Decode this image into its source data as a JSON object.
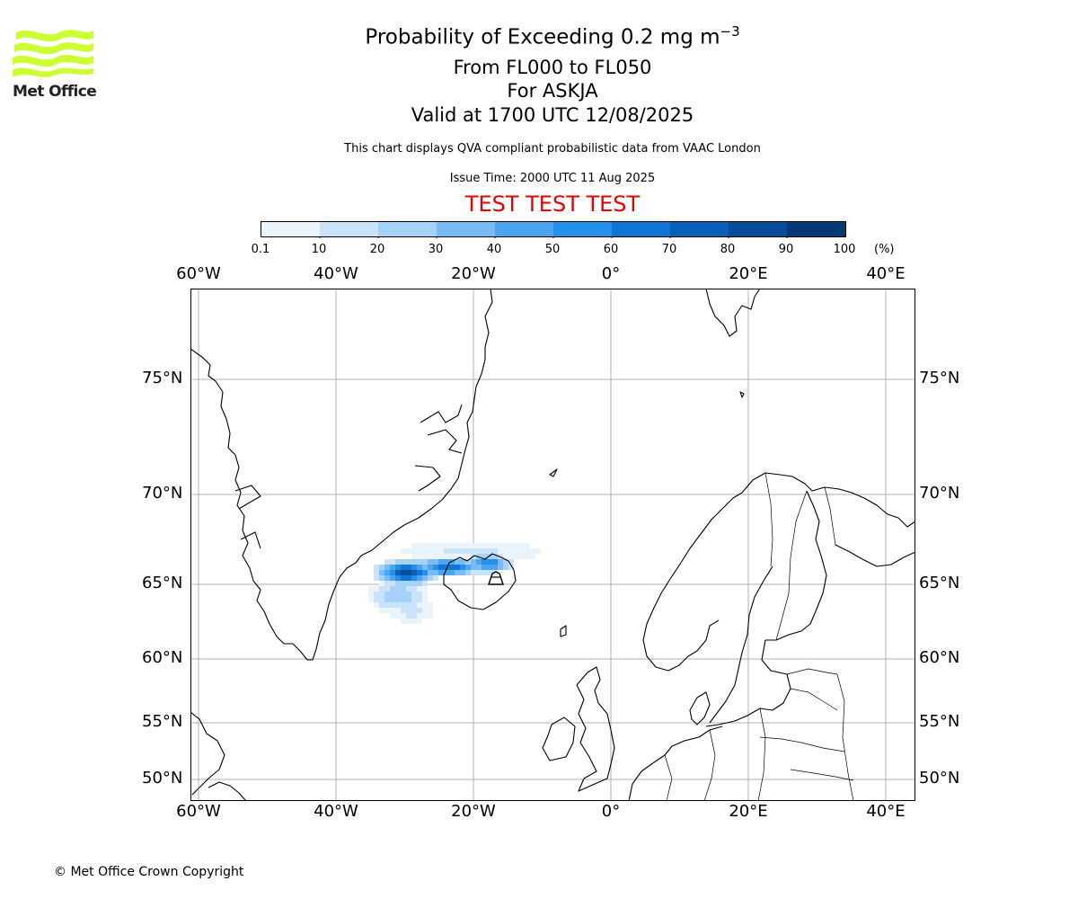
{
  "title": {
    "line1_prefix": "Probability of Exceeding 0.2 mg m",
    "line1_exponent": "−3",
    "line2": "From FL000 to FL050",
    "line3": "For ASKJA",
    "line4": "Valid at 1700 UTC 12/08/2025"
  },
  "subtitle": "This chart displays QVA compliant probabilistic data from VAAC London",
  "issue_time": "Issue Time: 2000 UTC 11 Aug 2025",
  "test_banner": "TEST TEST TEST",
  "logo": {
    "text": "Met Office",
    "icon": "met-office-wave-logo",
    "color": "#ccff33"
  },
  "colorbar": {
    "ticks": [
      "0.1",
      "10",
      "20",
      "30",
      "40",
      "50",
      "60",
      "70",
      "80",
      "90",
      "100"
    ],
    "unit": "(%)",
    "colors": [
      "#eaf4fd",
      "#c8e3fa",
      "#a5d2f7",
      "#79bcf4",
      "#4aa4f0",
      "#2590ea",
      "#0f76d6",
      "#0a5fb8",
      "#084d9a",
      "#063a77",
      "#05295a"
    ]
  },
  "map": {
    "lon_labels": [
      "60°W",
      "40°W",
      "20°W",
      "0°",
      "20°E",
      "40°E"
    ],
    "lat_labels": [
      "75°N",
      "70°N",
      "65°N",
      "60°N",
      "55°N",
      "50°N"
    ],
    "volcano": "Askja",
    "plume_color_range": [
      "#d6eafc",
      "#0a5fb8"
    ]
  },
  "copyright": "© Met Office Crown Copyright"
}
